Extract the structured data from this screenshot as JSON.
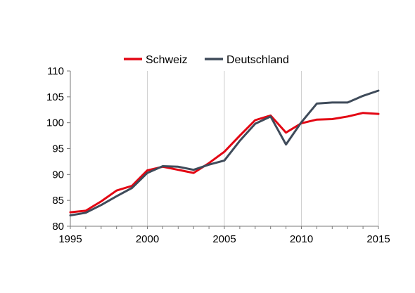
{
  "chart_data": {
    "type": "line",
    "title": "",
    "xlabel": "",
    "ylabel": "",
    "x": [
      1995,
      1996,
      1997,
      1998,
      1999,
      2000,
      2001,
      2002,
      2003,
      2004,
      2005,
      2006,
      2007,
      2008,
      2009,
      2010,
      2011,
      2012,
      2013,
      2014,
      2015
    ],
    "xlim": [
      1995,
      2015
    ],
    "ylim": [
      80,
      110
    ],
    "xticks": [
      "1995",
      "2000",
      "2005",
      "2010",
      "2015"
    ],
    "yticks": [
      "80",
      "85",
      "90",
      "95",
      "100",
      "105",
      "110"
    ],
    "grid": "vertical",
    "legend_position": "top-center",
    "series": [
      {
        "name": "Schweiz",
        "color": "#e30613",
        "values": [
          82.7,
          83.0,
          84.8,
          86.9,
          87.8,
          90.8,
          91.5,
          90.9,
          90.3,
          92.2,
          94.4,
          97.5,
          100.5,
          101.4,
          98.1,
          99.9,
          100.6,
          100.7,
          101.2,
          101.9,
          101.7
        ]
      },
      {
        "name": "Deutschland",
        "color": "#3f4b5a",
        "values": [
          82.1,
          82.6,
          84.1,
          85.8,
          87.4,
          90.3,
          91.6,
          91.5,
          90.9,
          91.9,
          92.7,
          96.5,
          99.8,
          101.2,
          95.8,
          100.1,
          103.7,
          103.9,
          103.9,
          105.2,
          106.2
        ]
      }
    ]
  }
}
